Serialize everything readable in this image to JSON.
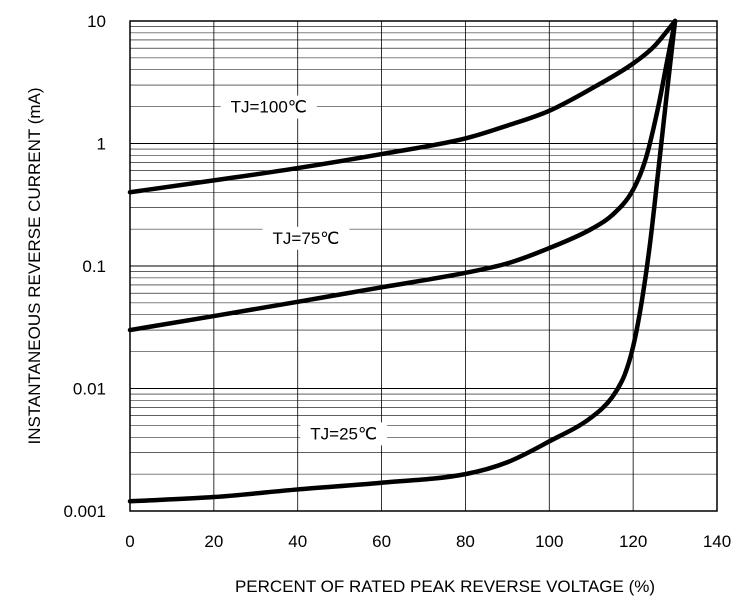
{
  "chart_data": {
    "type": "line",
    "xlabel": "PERCENT OF RATED PEAK REVERSE VOLTAGE (%)",
    "ylabel": "INSTANTANEOUS REVERSE CURRENT (mA)",
    "xlim": [
      0,
      140
    ],
    "ylim": [
      0.001,
      10
    ],
    "yscale": "log",
    "grid": true,
    "x_ticks": [
      "0",
      "20",
      "40",
      "60",
      "80",
      "100",
      "120",
      "140"
    ],
    "y_ticks": [
      "0.001",
      "0.01",
      "0.1",
      "1",
      "10"
    ],
    "series": [
      {
        "name": "TJ=100℃",
        "points": [
          [
            0,
            0.4
          ],
          [
            20,
            0.5
          ],
          [
            40,
            0.63
          ],
          [
            60,
            0.82
          ],
          [
            80,
            1.1
          ],
          [
            90,
            1.4
          ],
          [
            100,
            1.85
          ],
          [
            110,
            2.8
          ],
          [
            120,
            4.5
          ],
          [
            125,
            6.2
          ],
          [
            130,
            10
          ]
        ]
      },
      {
        "name": "TJ=75℃",
        "points": [
          [
            0,
            0.03
          ],
          [
            20,
            0.039
          ],
          [
            40,
            0.051
          ],
          [
            60,
            0.067
          ],
          [
            80,
            0.088
          ],
          [
            90,
            0.105
          ],
          [
            100,
            0.14
          ],
          [
            110,
            0.2
          ],
          [
            115,
            0.26
          ],
          [
            120,
            0.42
          ],
          [
            123,
            0.75
          ],
          [
            126,
            2.0
          ],
          [
            128,
            4.5
          ],
          [
            130,
            10
          ]
        ]
      },
      {
        "name": "TJ=25℃",
        "points": [
          [
            0,
            0.0012
          ],
          [
            20,
            0.0013
          ],
          [
            40,
            0.0015
          ],
          [
            60,
            0.0017
          ],
          [
            80,
            0.002
          ],
          [
            90,
            0.0025
          ],
          [
            100,
            0.0037
          ],
          [
            110,
            0.0058
          ],
          [
            115,
            0.0085
          ],
          [
            118,
            0.013
          ],
          [
            120,
            0.022
          ],
          [
            122,
            0.05
          ],
          [
            124,
            0.15
          ],
          [
            126,
            0.6
          ],
          [
            128,
            2.5
          ],
          [
            130,
            10
          ]
        ]
      }
    ],
    "labels": [
      {
        "text": "TJ=100℃",
        "x": 24,
        "y": 2.0
      },
      {
        "text": "TJ=75℃",
        "x": 34,
        "y": 0.17
      },
      {
        "text": "TJ=25℃",
        "x": 43,
        "y": 0.0043
      }
    ]
  }
}
